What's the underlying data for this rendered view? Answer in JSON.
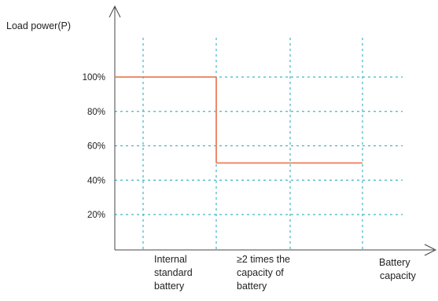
{
  "chart_data": {
    "type": "line",
    "title": "",
    "ylabel": "Load power(P)",
    "xlabel_lines": [
      "Battery",
      "capacity"
    ],
    "y_ticks": [
      "100%",
      "80%",
      "60%",
      "40%",
      "20%"
    ],
    "y_tick_values": [
      100,
      80,
      60,
      40,
      20
    ],
    "ylim": [
      0,
      120
    ],
    "x_markers": [
      {
        "label_lines": [
          "Internal",
          "standard",
          "battery"
        ]
      },
      {
        "label_lines": [
          "≥2 times the",
          "capacity of",
          "battery"
        ]
      }
    ],
    "series": [
      {
        "segments": [
          {
            "x_start": 0,
            "x_end": 1,
            "y": 100
          },
          {
            "x_start": 1,
            "x_end": 2,
            "y": 50
          }
        ]
      }
    ],
    "grid": true,
    "grid_style": "dashed",
    "colors": {
      "line": "#ef7d5b",
      "grid": "#3fb6c6",
      "axis": "#333333"
    }
  }
}
